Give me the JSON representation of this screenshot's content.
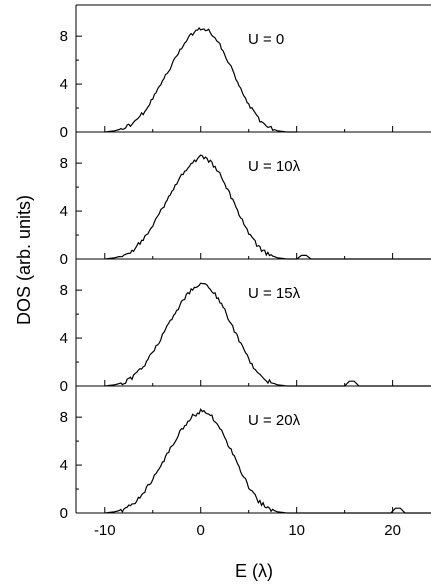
{
  "chart_data": {
    "type": "line",
    "ylabel": "DOS (arb. units)",
    "xlabel": "E (λ)",
    "xlim": [
      -13,
      24
    ],
    "ylim": [
      0,
      10.6
    ],
    "x_ticks": [
      -10,
      0,
      10,
      20
    ],
    "x_tick_labels": [
      "-10",
      "0",
      "10",
      "20"
    ],
    "y_ticks": [
      0,
      4,
      8
    ],
    "y_tick_labels": [
      "0",
      "4",
      "8"
    ],
    "shared_x": true,
    "panels": [
      {
        "label": "U = 0",
        "series": [
          {
            "x": [
              -10,
              -9,
              -8,
              -7,
              -6,
              -5,
              -4,
              -3,
              -2,
              -1,
              0,
              1,
              2,
              3,
              4,
              5,
              6,
              7,
              8,
              9,
              10
            ],
            "y": [
              0,
              0.1,
              0.3,
              0.8,
              1.6,
              2.8,
              4.2,
              5.6,
              7.0,
              8.1,
              8.7,
              8.4,
              7.3,
              5.7,
              3.9,
              2.3,
              1.1,
              0.4,
              0.1,
              0,
              0
            ]
          }
        ]
      },
      {
        "label": "U = 10λ",
        "series": [
          {
            "x": [
              -10,
              -9,
              -8,
              -7,
              -6,
              -5,
              -4,
              -3,
              -2,
              -1,
              0,
              1,
              2,
              3,
              4,
              5,
              6,
              7,
              8,
              9,
              10,
              10.5,
              11,
              11.5,
              12,
              14,
              16,
              18,
              20,
              22,
              24
            ],
            "y": [
              0,
              0.1,
              0.3,
              0.8,
              1.6,
              2.8,
              4.2,
              5.6,
              7.0,
              8.0,
              8.5,
              8.2,
              7.1,
              5.5,
              3.8,
              2.2,
              1.0,
              0.4,
              0.1,
              0,
              0,
              0.3,
              0.3,
              0,
              0,
              0,
              0,
              0,
              0,
              0,
              0
            ]
          }
        ]
      },
      {
        "label": "U = 15λ",
        "series": [
          {
            "x": [
              -10,
              -9,
              -8,
              -7,
              -6,
              -5,
              -4,
              -3,
              -2,
              -1,
              0,
              1,
              2,
              3,
              4,
              5,
              6,
              7,
              8,
              9,
              10,
              12,
              14,
              15,
              15.5,
              16,
              16.5,
              18,
              20,
              22,
              24
            ],
            "y": [
              0,
              0.1,
              0.3,
              0.8,
              1.6,
              2.8,
              4.2,
              5.6,
              7.0,
              8.0,
              8.6,
              8.2,
              7.1,
              5.5,
              3.8,
              2.2,
              1.0,
              0.4,
              0.1,
              0,
              0,
              0,
              0,
              0,
              0.4,
              0.4,
              0,
              0,
              0,
              0,
              0
            ]
          }
        ]
      },
      {
        "label": "U = 20λ",
        "series": [
          {
            "x": [
              -10,
              -9,
              -8,
              -7,
              -6,
              -5,
              -4,
              -3,
              -2,
              -1,
              0,
              1,
              2,
              3,
              4,
              5,
              6,
              7,
              8,
              9,
              10,
              12,
              14,
              16,
              18,
              19.8,
              20.3,
              20.8,
              21.3,
              22,
              24
            ],
            "y": [
              0,
              0.1,
              0.3,
              0.8,
              1.6,
              2.8,
              4.2,
              5.6,
              7.0,
              8.0,
              8.5,
              8.2,
              7.1,
              5.5,
              3.8,
              2.2,
              1.0,
              0.4,
              0.1,
              0,
              0,
              0,
              0,
              0,
              0,
              0,
              0.4,
              0.4,
              0,
              0,
              0
            ]
          }
        ]
      }
    ]
  }
}
